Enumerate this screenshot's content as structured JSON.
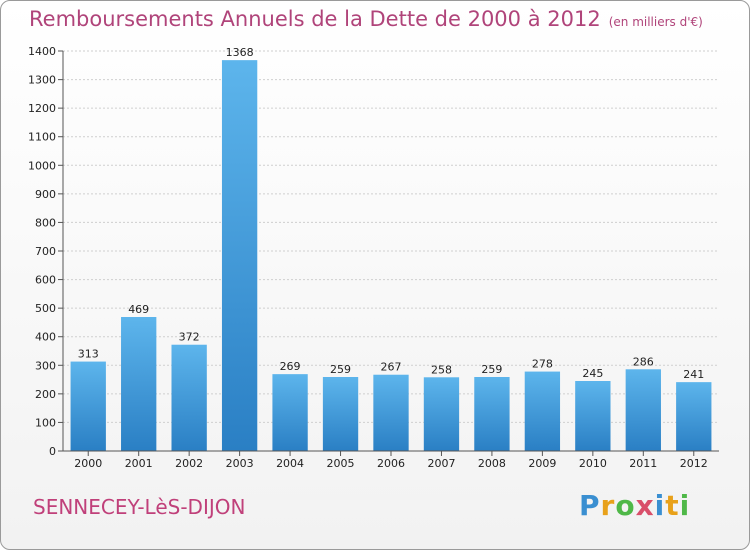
{
  "header": {
    "title": "Remboursements Annuels de la Dette de 2000 à 2012",
    "unit": "(en milliers d'€)"
  },
  "footer": {
    "commune": "SENNECEY-LèS-DIJON",
    "logo_text": "Proxiti"
  },
  "colors": {
    "bar_top": "#5db5ec",
    "bar_bottom": "#2a7fc4",
    "title": "#b0447a"
  },
  "chart_data": {
    "type": "bar",
    "title": "Remboursements Annuels de la Dette de 2000 à 2012",
    "xlabel": "",
    "ylabel": "",
    "categories": [
      "2000",
      "2001",
      "2002",
      "2003",
      "2004",
      "2005",
      "2006",
      "2007",
      "2008",
      "2009",
      "2010",
      "2011",
      "2012"
    ],
    "values": [
      313,
      469,
      372,
      1368,
      269,
      259,
      267,
      258,
      259,
      278,
      245,
      286,
      241
    ],
    "ylim": [
      0,
      1400
    ],
    "yticks": [
      0,
      100,
      200,
      300,
      400,
      500,
      600,
      700,
      800,
      900,
      1000,
      1100,
      1200,
      1300,
      1400
    ],
    "grid": true,
    "legend": "none"
  }
}
